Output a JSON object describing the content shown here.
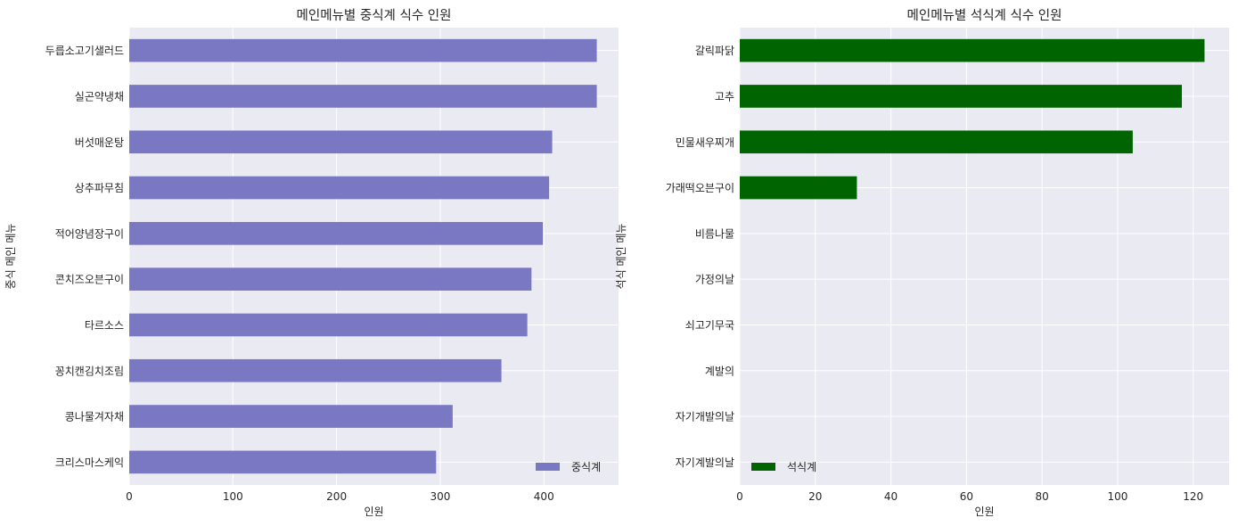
{
  "chart_data": [
    {
      "type": "bar",
      "orientation": "horizontal",
      "title": "메인메뉴별 중식계 식수 인원",
      "xlabel": "인원",
      "ylabel": "중식 메인 메뉴",
      "xlim": [
        0,
        472
      ],
      "xticks": [
        0,
        100,
        200,
        300,
        400
      ],
      "grid": true,
      "legend_position": "lower-right",
      "color": "#7b78c3",
      "categories": [
        "두릅소고기샐러드",
        "실곤약냉채",
        "버섯매운탕",
        "상추파무침",
        "적어양념장구이",
        "콘치즈오븐구이",
        "타르소스",
        "꽁치캔김치조림",
        "콩나물겨자채",
        "크리스마스케익"
      ],
      "series": [
        {
          "name": "중식계",
          "values": [
            451,
            451,
            408,
            405,
            399,
            388,
            384,
            359,
            312,
            296
          ]
        }
      ]
    },
    {
      "type": "bar",
      "orientation": "horizontal",
      "title": "메인메뉴별 석식계 식수 인원",
      "xlabel": "인원",
      "ylabel": "석식 메인 메뉴",
      "xlim": [
        0,
        129.5
      ],
      "xticks": [
        0,
        20,
        40,
        60,
        80,
        100,
        120
      ],
      "grid": true,
      "legend_position": "lower-left",
      "color": "#006400",
      "categories": [
        "갈릭파닭",
        "고추",
        "민물새우찌개",
        "가래떡오븐구이",
        "비름나물",
        "가정의날",
        "쇠고기무국",
        "계발의",
        "자기개발의날",
        "자기계발의날"
      ],
      "series": [
        {
          "name": "석식계",
          "values": [
            123,
            117,
            104,
            31,
            0,
            0,
            0,
            0,
            0,
            0
          ]
        }
      ]
    }
  ]
}
